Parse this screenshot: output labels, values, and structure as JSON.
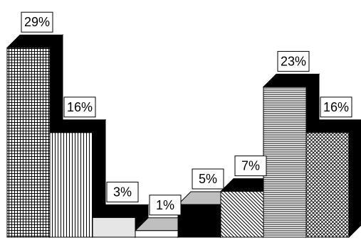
{
  "chart_data": {
    "type": "bar",
    "style": "3d-column",
    "title": "",
    "xlabel": "",
    "ylabel": "",
    "grid": false,
    "legend": "none",
    "ylim": [
      0,
      30
    ],
    "values": [
      29,
      16,
      3,
      1,
      5,
      7,
      23,
      16
    ],
    "labels": [
      "29%",
      "16%",
      "3%",
      "1%",
      "5%",
      "7%",
      "23%",
      "16%"
    ],
    "fills": [
      "grid-pattern",
      "vertical-lines-pattern",
      "light-gray",
      "white",
      "black",
      "diagonal-lines-pattern",
      "horizontal-lines-pattern",
      "crosshatch-pattern"
    ],
    "colors": {
      "outline": "#000000",
      "shadow": "#000000",
      "top_light": "#bfbfbf",
      "light_gray": "#e6e6e6",
      "background": "#ffffff"
    }
  }
}
